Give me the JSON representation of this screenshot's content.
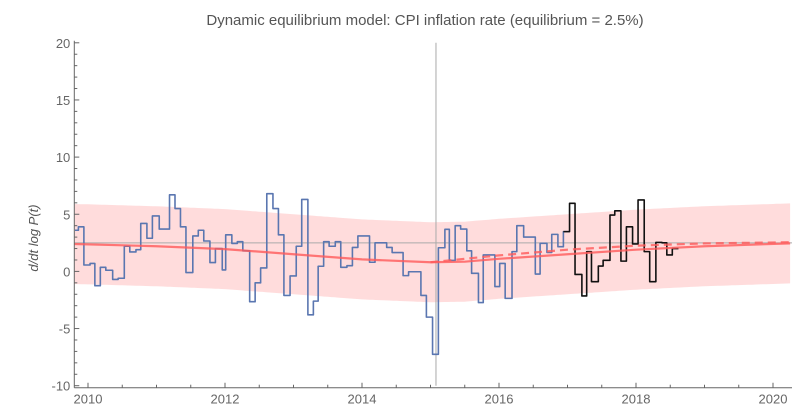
{
  "chart_data": {
    "type": "line",
    "title": "Dynamic equilibrium model: CPI inflation rate (equilibrium = 2.5%)",
    "xlabel": "",
    "ylabel": "d/dt log P(t)",
    "xlim": [
      2009.8,
      2020.25
    ],
    "ylim": [
      -10,
      20
    ],
    "x_ticks": [
      2010,
      2012,
      2014,
      2016,
      2018,
      2020
    ],
    "y_ticks": [
      -10,
      -5,
      0,
      5,
      10,
      15,
      20
    ],
    "grid": false,
    "reference_lines": {
      "horizontal": 2.5,
      "vertical": 2015.08
    },
    "colors": {
      "data": "#5a76b0",
      "post_data": "#111111",
      "model": "#ff5a5a",
      "band": "#ffd6d6",
      "reference": "#aaaaaa"
    },
    "series": [
      {
        "style": "step",
        "color": "data",
        "points": [
          [
            2009.81,
            3.6
          ],
          [
            2009.86,
            3.9
          ],
          [
            2009.94,
            0.56
          ],
          [
            2010.03,
            0.7
          ],
          [
            2010.1,
            -1.25
          ],
          [
            2010.18,
            0.36
          ],
          [
            2010.26,
            0.1
          ],
          [
            2010.36,
            -0.7
          ],
          [
            2010.44,
            -0.6
          ],
          [
            2010.53,
            2.2
          ],
          [
            2010.61,
            1.7
          ],
          [
            2010.7,
            1.9
          ],
          [
            2010.77,
            4.2
          ],
          [
            2010.86,
            2.9
          ],
          [
            2010.94,
            4.85
          ],
          [
            2011.04,
            3.7
          ],
          [
            2011.19,
            6.7
          ],
          [
            2011.27,
            5.5
          ],
          [
            2011.35,
            3.9
          ],
          [
            2011.43,
            -0.1
          ],
          [
            2011.53,
            3.1
          ],
          [
            2011.61,
            3.6
          ],
          [
            2011.69,
            2.66
          ],
          [
            2011.78,
            0.77
          ],
          [
            2011.86,
            2.0
          ],
          [
            2011.96,
            0.13
          ],
          [
            2012.01,
            3.2
          ],
          [
            2012.1,
            2.45
          ],
          [
            2012.18,
            2.6
          ],
          [
            2012.26,
            1.8
          ],
          [
            2012.36,
            -2.65
          ],
          [
            2012.44,
            -1.0
          ],
          [
            2012.52,
            0.3
          ],
          [
            2012.61,
            6.8
          ],
          [
            2012.7,
            5.5
          ],
          [
            2012.78,
            3.2
          ],
          [
            2012.86,
            -2.1
          ],
          [
            2012.95,
            -0.4
          ],
          [
            2013.04,
            2.2
          ],
          [
            2013.12,
            6.3
          ],
          [
            2013.21,
            -3.8
          ],
          [
            2013.29,
            -2.6
          ],
          [
            2013.36,
            0.45
          ],
          [
            2013.44,
            2.6
          ],
          [
            2013.52,
            2.2
          ],
          [
            2013.61,
            2.6
          ],
          [
            2013.69,
            0.36
          ],
          [
            2013.78,
            0.5
          ],
          [
            2013.86,
            2.1
          ],
          [
            2013.94,
            3.1
          ],
          [
            2014.11,
            0.8
          ],
          [
            2014.19,
            2.5
          ],
          [
            2014.36,
            2.1
          ],
          [
            2014.44,
            1.65
          ],
          [
            2014.6,
            -0.37
          ],
          [
            2014.68,
            -0.03
          ],
          [
            2014.86,
            -2.1
          ],
          [
            2014.94,
            -4.0
          ],
          [
            2015.03,
            -7.25
          ],
          [
            2015.115,
            2.07
          ],
          [
            2015.21,
            3.68
          ],
          [
            2015.275,
            0.96
          ],
          [
            2015.36,
            4.0
          ],
          [
            2015.44,
            3.7
          ],
          [
            2015.53,
            1.8
          ],
          [
            2015.6,
            -0.17
          ],
          [
            2015.7,
            -2.73
          ],
          [
            2015.77,
            1.44
          ],
          [
            2015.94,
            -1.33
          ],
          [
            2016.01,
            0.7
          ],
          [
            2016.09,
            -2.36
          ],
          [
            2016.19,
            1.73
          ],
          [
            2016.26,
            4.0
          ],
          [
            2016.36,
            3.0
          ],
          [
            2016.53,
            -0.23
          ],
          [
            2016.6,
            2.46
          ],
          [
            2016.7,
            1.66
          ],
          [
            2016.77,
            3.24
          ],
          [
            2016.86,
            2.16
          ],
          [
            2016.94,
            3.48
          ],
          [
            2017.03,
            3.48
          ]
        ]
      },
      {
        "style": "step",
        "color": "post_data",
        "points": [
          [
            2016.94,
            3.48
          ],
          [
            2017.03,
            5.96
          ],
          [
            2017.11,
            -0.27
          ],
          [
            2017.21,
            -2.15
          ],
          [
            2017.28,
            1.73
          ],
          [
            2017.35,
            -0.9
          ],
          [
            2017.45,
            0.47
          ],
          [
            2017.52,
            0.97
          ],
          [
            2017.62,
            4.93
          ],
          [
            2017.69,
            5.3
          ],
          [
            2017.78,
            0.9
          ],
          [
            2017.86,
            3.9
          ],
          [
            2017.95,
            2.4
          ],
          [
            2018.03,
            6.25
          ],
          [
            2018.12,
            1.73
          ],
          [
            2018.2,
            -0.9
          ],
          [
            2018.29,
            2.54
          ],
          [
            2018.38,
            2.5
          ],
          [
            2018.45,
            1.44
          ],
          [
            2018.53,
            2.0
          ],
          [
            2018.62,
            2.0
          ]
        ]
      },
      {
        "style": "solid",
        "color": "model",
        "points": [
          [
            2009.8,
            2.4
          ],
          [
            2011,
            2.2
          ],
          [
            2012,
            1.95
          ],
          [
            2013,
            1.5
          ],
          [
            2014,
            1.05
          ],
          [
            2015,
            0.8
          ],
          [
            2015.5,
            0.85
          ],
          [
            2016,
            1.1
          ],
          [
            2017,
            1.5
          ],
          [
            2018,
            1.9
          ],
          [
            2019,
            2.2
          ],
          [
            2020.25,
            2.45
          ]
        ]
      },
      {
        "style": "dashed",
        "color": "model",
        "points": [
          [
            2015,
            0.8
          ],
          [
            2016,
            1.4
          ],
          [
            2017,
            1.9
          ],
          [
            2018,
            2.25
          ],
          [
            2019,
            2.45
          ],
          [
            2020.25,
            2.55
          ]
        ]
      }
    ],
    "band": {
      "around": "model",
      "half_width": 3.5
    }
  }
}
